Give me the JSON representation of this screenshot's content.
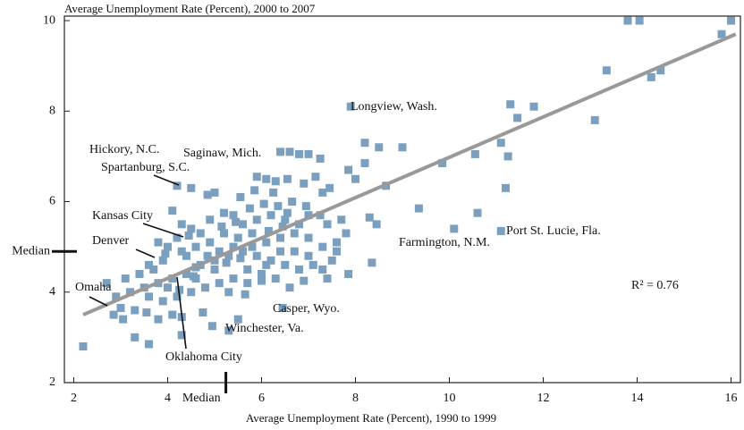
{
  "chart_data": {
    "type": "scatter",
    "y_label": "Average Unemployment Rate (Percent), 2000 to 2007",
    "x_label": "Average Unemployment Rate (Percent), 1990 to 1999",
    "xlim": [
      1.8,
      16.2
    ],
    "ylim": [
      2,
      10.1
    ],
    "xticks": [
      2,
      4,
      6,
      8,
      10,
      12,
      14,
      16
    ],
    "yticks": [
      2,
      4,
      6,
      8,
      10
    ],
    "color": "#7b9fbf",
    "x": [
      13.8,
      14.05,
      16.0,
      15.8,
      13.35,
      14.5,
      14.3,
      13.1,
      11.3,
      11.45,
      11.8,
      11.1,
      11.25,
      11.2,
      9.85,
      10.55,
      9.0,
      8.5,
      8.2,
      10.6,
      9.35,
      10.1,
      11.1,
      8.3,
      8.35,
      7.9,
      8.65,
      8.0,
      8.2,
      7.85,
      7.25,
      7.0,
      6.6,
      6.4,
      6.8,
      8.45,
      7.7,
      7.8,
      6.45,
      5.3,
      2.2,
      2.7,
      3.6,
      3.3,
      4.3,
      2.85,
      3.05,
      3.0,
      3.55,
      3.8,
      4.1,
      4.3,
      4.75,
      4.95,
      5.5,
      5.65,
      6.0,
      6.9,
      7.4,
      7.85,
      6.6,
      4.2,
      4.5,
      4.85,
      5.0,
      5.55,
      5.9,
      6.1,
      6.3,
      6.55,
      6.9,
      7.15,
      7.45,
      7.3,
      4.1,
      4.3,
      4.5,
      4.9,
      5.2,
      5.4,
      5.6,
      5.9,
      6.2,
      6.5,
      6.8,
      7.0,
      7.4,
      7.6,
      7.3,
      7.0,
      6.7,
      6.4,
      6.1,
      5.8,
      5.5,
      5.2,
      4.9,
      4.6,
      4.3,
      4.0,
      3.9,
      3.7,
      3.4,
      3.1,
      3.2,
      3.5,
      3.8,
      4.1,
      4.4,
      4.7,
      5.0,
      5.3,
      5.6,
      5.9,
      6.2,
      6.5,
      6.8,
      7.1,
      7.5,
      5.7,
      5.4,
      5.1,
      4.8,
      4.5,
      4.2,
      3.9,
      3.6,
      4.0,
      4.6,
      5.0,
      5.3,
      5.7,
      6.0,
      6.3,
      3.6,
      3.8,
      4.2,
      4.4,
      4.7,
      5.1,
      5.4,
      5.8,
      6.1,
      6.4,
      6.7,
      7.0,
      7.3,
      7.6,
      4.45,
      4.55,
      3.95,
      4.85,
      5.15,
      5.45,
      5.75,
      6.05,
      6.35,
      6.65,
      6.95,
      7.25,
      6.25,
      5.85,
      6.55,
      2.9,
      3.3,
      4.25,
      4.6,
      5.25,
      5.55,
      6.15,
      6.45
    ],
    "values": [
      10,
      10,
      10,
      9.7,
      8.9,
      8.9,
      8.75,
      7.8,
      8.15,
      7.85,
      8.1,
      7.3,
      7.0,
      6.3,
      6.85,
      7.05,
      7.2,
      7.2,
      7.3,
      5.75,
      5.85,
      5.4,
      5.35,
      5.65,
      4.65,
      8.1,
      6.35,
      6.5,
      6.85,
      6.7,
      6.95,
      7.05,
      7.1,
      7.1,
      7.05,
      5.5,
      5.6,
      5.3,
      3.65,
      3.15,
      2.8,
      4.2,
      2.85,
      3.0,
      3.05,
      3.5,
      3.4,
      3.65,
      3.55,
      3.4,
      3.5,
      3.45,
      3.55,
      3.25,
      3.4,
      3.95,
      4.25,
      4.25,
      4.3,
      4.4,
      4.1,
      6.35,
      6.3,
      6.15,
      6.2,
      6.1,
      6.55,
      6.5,
      6.45,
      6.5,
      6.4,
      6.55,
      6.3,
      6.2,
      5.8,
      5.5,
      5.4,
      5.6,
      5.75,
      5.7,
      5.5,
      5.6,
      5.7,
      5.6,
      5.5,
      5.7,
      5.5,
      5.1,
      5.0,
      4.8,
      4.9,
      5.2,
      5.1,
      5.3,
      5.2,
      5.3,
      5.1,
      5.0,
      4.9,
      5.0,
      4.7,
      4.5,
      4.4,
      4.3,
      4.0,
      4.1,
      4.2,
      4.3,
      4.4,
      4.6,
      4.7,
      4.8,
      4.9,
      4.8,
      4.7,
      4.6,
      4.5,
      4.6,
      4.7,
      4.5,
      4.3,
      4.2,
      4.1,
      4.0,
      3.9,
      3.8,
      3.9,
      4.1,
      4.3,
      4.5,
      4.0,
      4.2,
      4.4,
      4.3,
      4.6,
      5.1,
      5.2,
      4.8,
      5.3,
      4.9,
      5.0,
      5.0,
      4.6,
      4.9,
      5.3,
      5.2,
      4.5,
      4.9,
      5.25,
      4.35,
      4.85,
      4.8,
      5.45,
      5.55,
      5.85,
      5.95,
      5.9,
      6.0,
      5.9,
      5.7,
      6.2,
      6.25,
      5.75,
      3.9,
      3.6,
      4.05,
      4.55,
      4.65,
      4.75,
      5.35,
      5.45
    ],
    "trendline": {
      "x": [
        2.2,
        16.1
      ],
      "values": [
        3.5,
        9.7
      ]
    },
    "median_label": "Median",
    "median_x": 5.24,
    "median_y": 4.9,
    "annotations": [
      "Longview, Wash.",
      "Hickory, N.C.",
      "Saginaw, Mich.",
      "Spartanburg, S.C.",
      "Kansas City",
      "Denver",
      "Omaha",
      "Oklahoma City",
      "Casper, Wyo.",
      "Winchester, Va.",
      "Farmington, N.M.",
      "Port St. Lucie, Fla.",
      "R² = 0.76"
    ]
  }
}
